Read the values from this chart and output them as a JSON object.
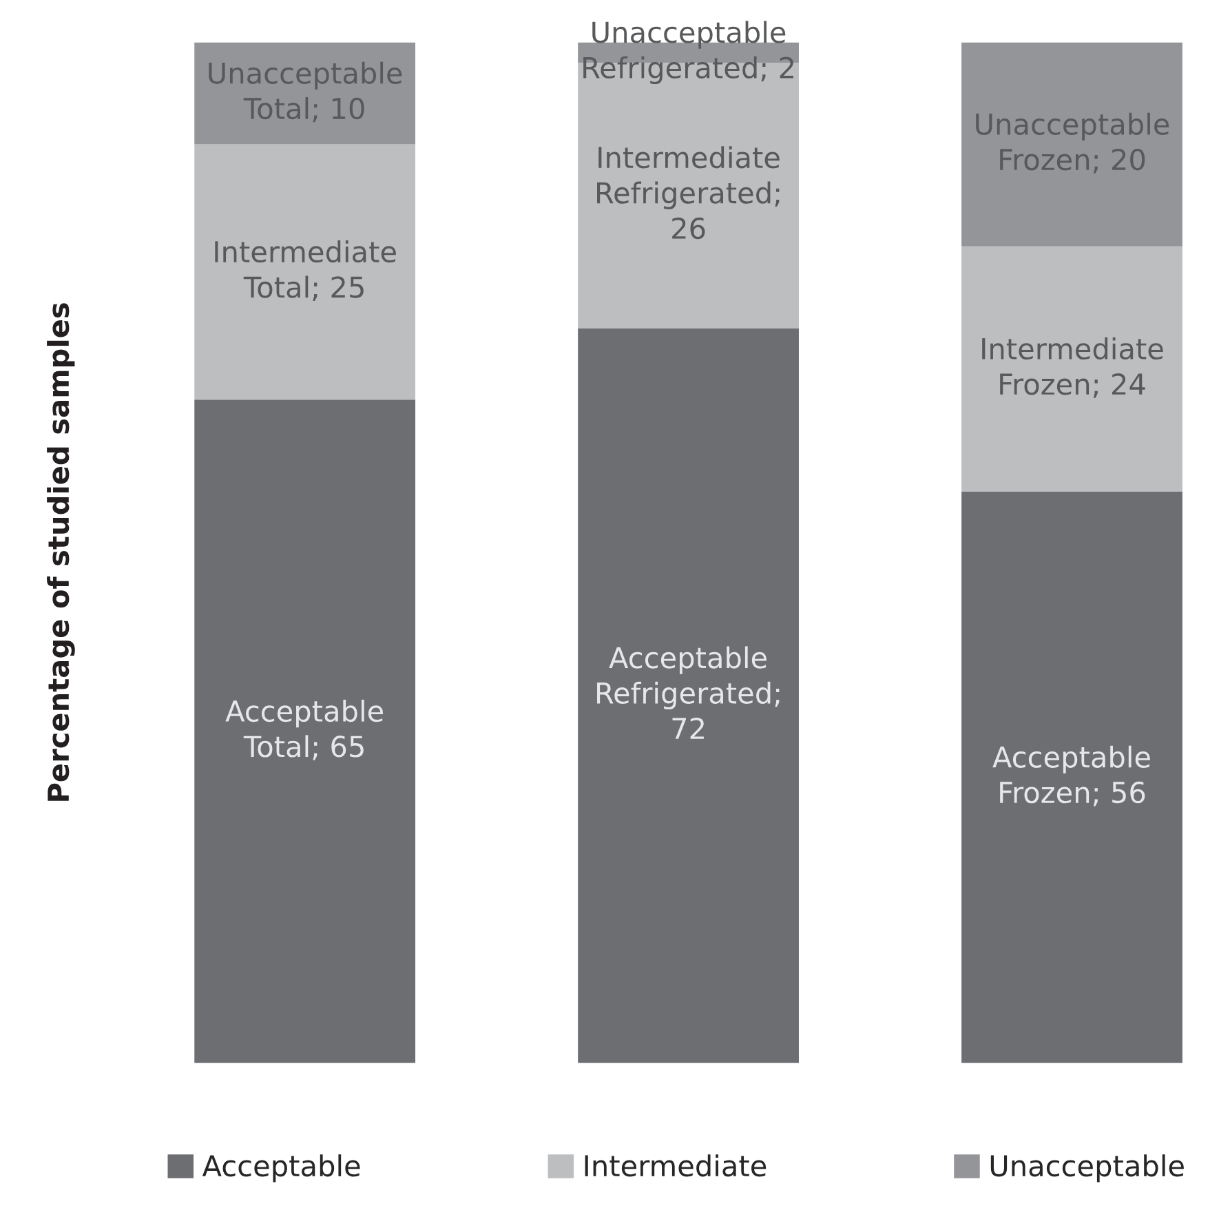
{
  "chart_data": {
    "type": "bar",
    "stacked": true,
    "ylabel": "Percentage of studied samples",
    "categories": [
      null,
      null,
      null
    ],
    "series": [
      {
        "name": "Acceptable",
        "color": "#6d6e71",
        "values": [
          65,
          72,
          56
        ],
        "value_labels": [
          "Acceptable\nTotal; 65",
          "Acceptable\nRefrigerated;\n72",
          "Acceptable\nFrozen; 56"
        ]
      },
      {
        "name": "Intermediate",
        "color": "#bcbec0",
        "values": [
          25,
          26,
          24
        ],
        "value_labels": [
          "Intermediate\nTotal; 25",
          "Intermediate\nRefrigerated;\n26",
          "Intermediate\nFrozen; 24"
        ]
      },
      {
        "name": "Unacceptable",
        "color": "#939598",
        "values": [
          10,
          2,
          20
        ],
        "value_labels": [
          "Unacceptable\nTotal; 10",
          "Unacceptable\nRefrigerated; 2",
          "Unacceptable\nFrozen; 20"
        ]
      }
    ],
    "ylim": [
      0,
      100
    ],
    "tick_labels": false,
    "legend": "bottom"
  }
}
